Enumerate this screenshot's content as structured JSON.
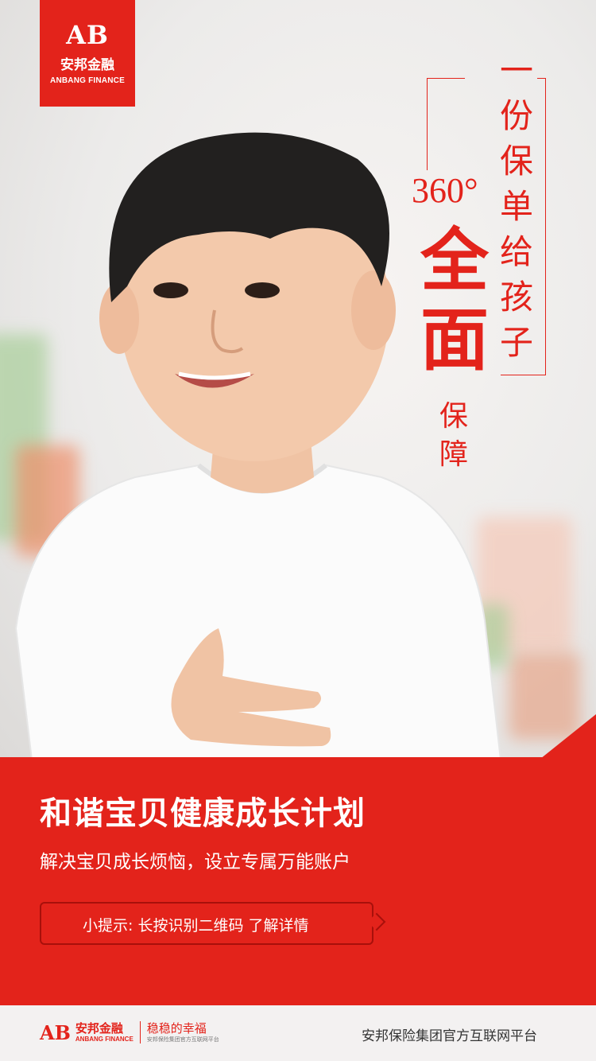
{
  "logo": {
    "mark": "AB",
    "name_cn": "安邦金融",
    "name_en": "ANBANG FINANCE"
  },
  "slogan": {
    "line1": [
      "一",
      "份",
      "保",
      "单",
      "给",
      "孩",
      "子"
    ],
    "degree": "360°",
    "big": [
      "全",
      "面"
    ],
    "small": [
      "保",
      "障"
    ]
  },
  "panel": {
    "title": "和谐宝贝健康成长计划",
    "subtitle": "解决宝贝成长烦恼，设立专属万能账户",
    "tip": "小提示: 长按识别二维码 了解详情"
  },
  "footer": {
    "logo_mark": "AB",
    "logo_cn": "安邦金融",
    "logo_en": "ANBANG FINANCE",
    "slogan_cn": "稳稳的幸福",
    "slogan_small": "安邦保险集团官方互联网平台",
    "right_text": "安邦保险集团官方互联网平台"
  },
  "colors": {
    "brand_red": "#e3231b",
    "footer_bg": "#f3f1f1"
  }
}
